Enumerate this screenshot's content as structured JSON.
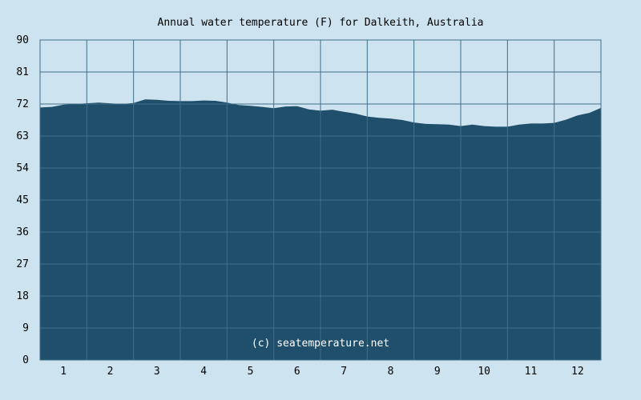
{
  "chart_data": {
    "type": "area",
    "title": "Annual water temperature (F) for Dalkeith, Australia",
    "watermark": "(c) seatemperature.net",
    "xlabel": "",
    "ylabel": "",
    "categories": [
      "1",
      "2",
      "3",
      "4",
      "5",
      "6",
      "7",
      "8",
      "9",
      "10",
      "11",
      "12"
    ],
    "yticks": [
      "0",
      "9",
      "18",
      "27",
      "36",
      "45",
      "54",
      "63",
      "72",
      "81",
      "90"
    ],
    "ylim": [
      0,
      90
    ],
    "xlim": [
      0,
      12
    ],
    "grid": true,
    "colors": {
      "background": "#cde3ef",
      "area": "#1f4f6b",
      "grid": "#3f6f8b"
    },
    "series": [
      {
        "x": [
          0,
          0.25,
          0.5,
          0.75,
          1,
          1.25,
          1.5,
          1.75,
          2,
          2.25,
          2.5,
          2.75,
          3,
          3.25,
          3.5,
          3.75,
          4,
          4.25,
          4.5,
          4.75,
          5,
          5.25,
          5.5,
          5.75,
          6,
          6.25,
          6.5,
          6.75,
          7,
          7.25,
          7.5,
          7.75,
          8,
          8.25,
          8.5,
          8.75,
          9,
          9.25,
          9.5,
          9.75,
          10,
          10.25,
          10.5,
          10.75,
          11,
          11.25,
          11.5,
          11.75,
          12
        ],
        "values": [
          71.0,
          71.2,
          71.8,
          72.0,
          72.2,
          72.4,
          72.2,
          72.0,
          72.3,
          73.3,
          73.2,
          72.9,
          72.8,
          72.8,
          73.0,
          72.9,
          72.4,
          71.7,
          71.5,
          71.2,
          70.8,
          71.3,
          71.4,
          70.5,
          70.1,
          70.4,
          69.8,
          69.3,
          68.5,
          68.1,
          67.9,
          67.5,
          66.8,
          66.4,
          66.3,
          66.2,
          65.8,
          66.2,
          65.8,
          65.6,
          65.6,
          66.2,
          66.5,
          66.5,
          66.7,
          67.6,
          68.8,
          69.5,
          70.9
        ]
      }
    ]
  }
}
